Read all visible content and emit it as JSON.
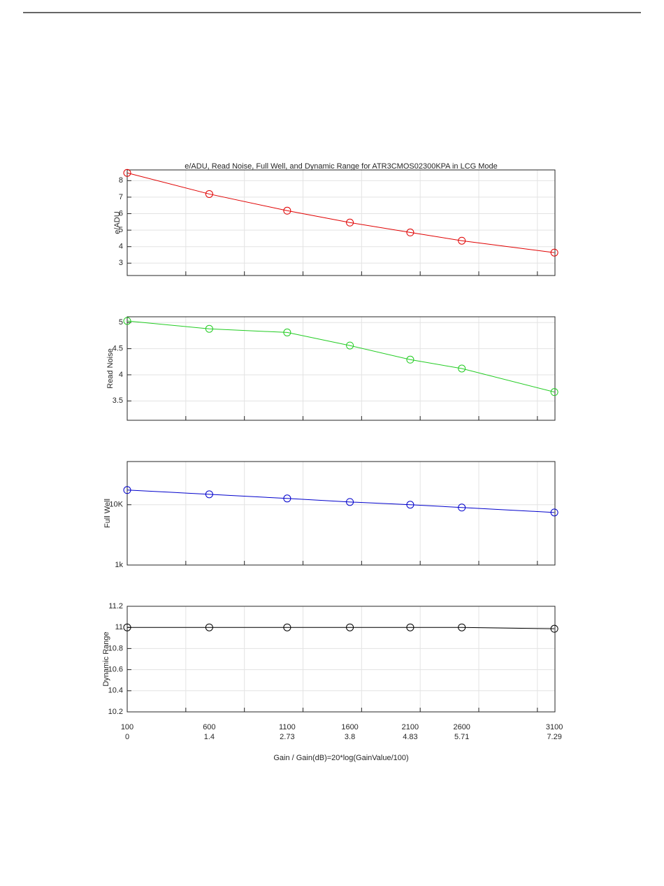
{
  "chart_data": [
    {
      "type": "line",
      "title": "e/ADU, Read Noise, Full Well, and Dynamic Range for ATR3CMOS02300KPA in LCG Mode",
      "ylabel": "e/ADU",
      "x": [
        0,
        1.4,
        2.73,
        3.8,
        4.83,
        5.71,
        7.29
      ],
      "values": [
        8.47,
        7.19,
        6.18,
        5.46,
        4.86,
        4.36,
        3.64
      ],
      "color": "#e00000",
      "xlim": [
        0,
        7.3
      ],
      "xticks": [
        0,
        1,
        2,
        3,
        4,
        5,
        6,
        7
      ],
      "ylim": [
        2.25,
        8.65
      ],
      "yticks": [
        3,
        4,
        5,
        6,
        7,
        8
      ],
      "grid": true
    },
    {
      "type": "line",
      "ylabel": "Read Noise",
      "x": [
        0,
        1.4,
        2.73,
        3.8,
        4.83,
        5.71,
        7.29
      ],
      "values": [
        5.03,
        4.88,
        4.81,
        4.56,
        4.29,
        4.12,
        3.67
      ],
      "color": "#22cc22",
      "xlim": [
        0,
        7.3
      ],
      "xticks": [
        0,
        1,
        2,
        3,
        4,
        5,
        6,
        7
      ],
      "ylim": [
        3.13,
        5.11
      ],
      "yticks": [
        3.5,
        4,
        4.5,
        5
      ],
      "grid": true
    },
    {
      "type": "line",
      "ylabel": "Full Well",
      "x": [
        0,
        1.4,
        2.73,
        3.8,
        4.83,
        5.71,
        7.29
      ],
      "values": [
        17500,
        14900,
        12700,
        11100,
        10000,
        8980,
        7440
      ],
      "color": "#0000cc",
      "xlim": [
        0,
        7.3
      ],
      "xticks": [
        0,
        1,
        2,
        3,
        4,
        5,
        6,
        7
      ],
      "ylim": [
        1000,
        52000
      ],
      "log_y": true,
      "yticks": [
        {
          "value": 1000,
          "label": "1k"
        },
        {
          "value": 10000,
          "label": "10K"
        }
      ],
      "grid": true
    },
    {
      "type": "line",
      "ylabel": "Dynamic Range",
      "x": [
        0,
        1.4,
        2.73,
        3.8,
        4.83,
        5.71,
        7.29
      ],
      "values": [
        11,
        11,
        11,
        11,
        11,
        11,
        10.987
      ],
      "color": "#000000",
      "categories": [
        "100",
        "600",
        "1100",
        "1600",
        "2100",
        "2600",
        "3100"
      ],
      "xlabel": "Gain / Gain(dB)=20*log(GainValue/100)",
      "xlim": [
        0,
        7.3
      ],
      "xticks": [
        0,
        1,
        2,
        3,
        4,
        5,
        6,
        7
      ],
      "ylim": [
        10.2,
        11.2
      ],
      "yticks": [
        10.2,
        10.4,
        10.6,
        10.8,
        11,
        11.2
      ],
      "grid": true
    }
  ]
}
